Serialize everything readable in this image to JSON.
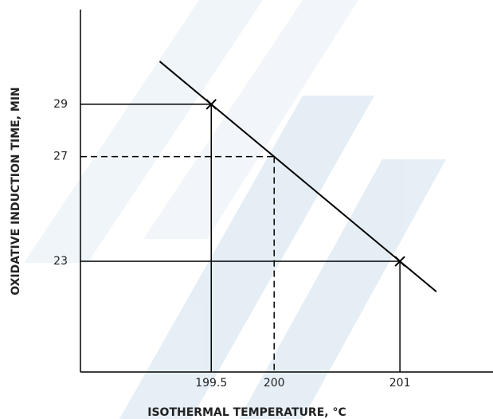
{
  "chart_data": {
    "type": "line",
    "x_label": "ISOTHERMAL TEMPERATURE, °C",
    "y_label": "OXIDATIVE INDUCTION TIME, MIN",
    "xlim": [
      198.46,
      201.74
    ],
    "ylim": [
      18.77,
      32.62
    ],
    "xticks": [
      199.5,
      200,
      201
    ],
    "yticks": [
      23,
      27,
      29
    ],
    "series": [
      {
        "color": "#000000",
        "x": [
          199.09,
          201.29
        ],
        "values": [
          30.64,
          21.84
        ]
      }
    ],
    "markers": {
      "x": [
        199.5,
        201
      ],
      "values": [
        29,
        23
      ],
      "style": "solid",
      "symbol": "x"
    },
    "reference": {
      "x": [
        200
      ],
      "values": [
        27
      ],
      "style": "dashed"
    }
  }
}
